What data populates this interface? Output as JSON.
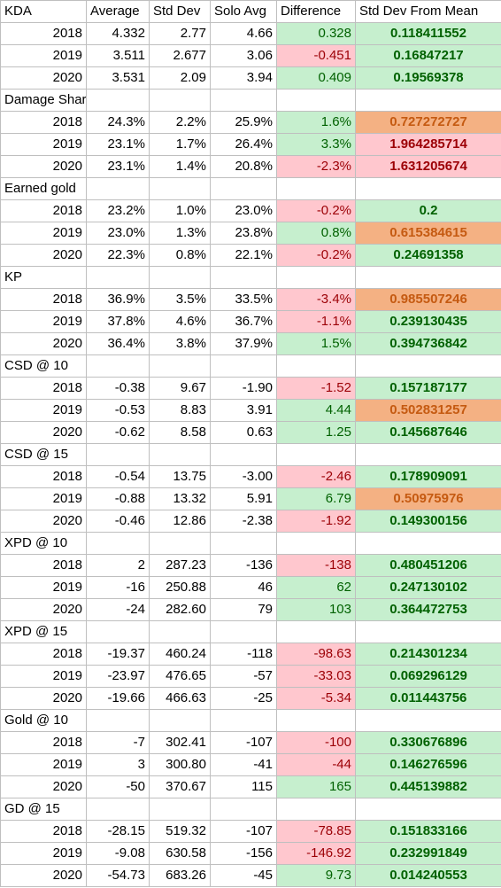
{
  "headers": [
    "Average",
    "Std Dev",
    "Solo Avg",
    "Difference",
    "Std Dev From Mean"
  ],
  "colors": {
    "positive_fill": "#c6efce",
    "positive_text": "#006100",
    "negative_fill": "#ffc7ce",
    "negative_text": "#9c0006",
    "warning_fill": "#f4b183",
    "warning_text": "#c55a11"
  },
  "sections": [
    {
      "name": "KDA",
      "rows": [
        {
          "year": "2018",
          "average": "4.332",
          "std_dev": "2.77",
          "solo_avg": "4.66",
          "difference": "0.328",
          "diff_sign": "pos",
          "sd_from_mean": "0.118411552",
          "sd_level": "good"
        },
        {
          "year": "2019",
          "average": "3.511",
          "std_dev": "2.677",
          "solo_avg": "3.06",
          "difference": "-0.451",
          "diff_sign": "neg",
          "sd_from_mean": "0.16847217",
          "sd_level": "good"
        },
        {
          "year": "2020",
          "average": "3.531",
          "std_dev": "2.09",
          "solo_avg": "3.94",
          "difference": "0.409",
          "diff_sign": "pos",
          "sd_from_mean": "0.19569378",
          "sd_level": "good"
        }
      ]
    },
    {
      "name": "Damage Share",
      "rows": [
        {
          "year": "2018",
          "average": "24.3%",
          "std_dev": "2.2%",
          "solo_avg": "25.9%",
          "difference": "1.6%",
          "diff_sign": "pos",
          "sd_from_mean": "0.727272727",
          "sd_level": "warn"
        },
        {
          "year": "2019",
          "average": "23.1%",
          "std_dev": "1.7%",
          "solo_avg": "26.4%",
          "difference": "3.3%",
          "diff_sign": "pos",
          "sd_from_mean": "1.964285714",
          "sd_level": "bad"
        },
        {
          "year": "2020",
          "average": "23.1%",
          "std_dev": "1.4%",
          "solo_avg": "20.8%",
          "difference": "-2.3%",
          "diff_sign": "neg",
          "sd_from_mean": "1.631205674",
          "sd_level": "bad"
        }
      ]
    },
    {
      "name": "Earned gold",
      "rows": [
        {
          "year": "2018",
          "average": "23.2%",
          "std_dev": "1.0%",
          "solo_avg": "23.0%",
          "difference": "-0.2%",
          "diff_sign": "neg",
          "sd_from_mean": "0.2",
          "sd_level": "good"
        },
        {
          "year": "2019",
          "average": "23.0%",
          "std_dev": "1.3%",
          "solo_avg": "23.8%",
          "difference": "0.8%",
          "diff_sign": "pos",
          "sd_from_mean": "0.615384615",
          "sd_level": "warn"
        },
        {
          "year": "2020",
          "average": "22.3%",
          "std_dev": "0.8%",
          "solo_avg": "22.1%",
          "difference": "-0.2%",
          "diff_sign": "neg",
          "sd_from_mean": "0.24691358",
          "sd_level": "good"
        }
      ]
    },
    {
      "name": "KP",
      "rows": [
        {
          "year": "2018",
          "average": "36.9%",
          "std_dev": "3.5%",
          "solo_avg": "33.5%",
          "difference": "-3.4%",
          "diff_sign": "neg",
          "sd_from_mean": "0.985507246",
          "sd_level": "warn"
        },
        {
          "year": "2019",
          "average": "37.8%",
          "std_dev": "4.6%",
          "solo_avg": "36.7%",
          "difference": "-1.1%",
          "diff_sign": "neg",
          "sd_from_mean": "0.239130435",
          "sd_level": "good"
        },
        {
          "year": "2020",
          "average": "36.4%",
          "std_dev": "3.8%",
          "solo_avg": "37.9%",
          "difference": "1.5%",
          "diff_sign": "pos",
          "sd_from_mean": "0.394736842",
          "sd_level": "good"
        }
      ]
    },
    {
      "name": "CSD @ 10",
      "rows": [
        {
          "year": "2018",
          "average": "-0.38",
          "std_dev": "9.67",
          "solo_avg": "-1.90",
          "difference": "-1.52",
          "diff_sign": "neg",
          "sd_from_mean": "0.157187177",
          "sd_level": "good"
        },
        {
          "year": "2019",
          "average": "-0.53",
          "std_dev": "8.83",
          "solo_avg": "3.91",
          "difference": "4.44",
          "diff_sign": "pos",
          "sd_from_mean": "0.502831257",
          "sd_level": "warn"
        },
        {
          "year": "2020",
          "average": "-0.62",
          "std_dev": "8.58",
          "solo_avg": "0.63",
          "difference": "1.25",
          "diff_sign": "pos",
          "sd_from_mean": "0.145687646",
          "sd_level": "good"
        }
      ]
    },
    {
      "name": "CSD @ 15",
      "rows": [
        {
          "year": "2018",
          "average": "-0.54",
          "std_dev": "13.75",
          "solo_avg": "-3.00",
          "difference": "-2.46",
          "diff_sign": "neg",
          "sd_from_mean": "0.178909091",
          "sd_level": "good"
        },
        {
          "year": "2019",
          "average": "-0.88",
          "std_dev": "13.32",
          "solo_avg": "5.91",
          "difference": "6.79",
          "diff_sign": "pos",
          "sd_from_mean": "0.50975976",
          "sd_level": "warn"
        },
        {
          "year": "2020",
          "average": "-0.46",
          "std_dev": "12.86",
          "solo_avg": "-2.38",
          "difference": "-1.92",
          "diff_sign": "neg",
          "sd_from_mean": "0.149300156",
          "sd_level": "good"
        }
      ]
    },
    {
      "name": "XPD @ 10",
      "rows": [
        {
          "year": "2018",
          "average": "2",
          "std_dev": "287.23",
          "solo_avg": "-136",
          "difference": "-138",
          "diff_sign": "neg",
          "sd_from_mean": "0.480451206",
          "sd_level": "good"
        },
        {
          "year": "2019",
          "average": "-16",
          "std_dev": "250.88",
          "solo_avg": "46",
          "difference": "62",
          "diff_sign": "pos",
          "sd_from_mean": "0.247130102",
          "sd_level": "good"
        },
        {
          "year": "2020",
          "average": "-24",
          "std_dev": "282.60",
          "solo_avg": "79",
          "difference": "103",
          "diff_sign": "pos",
          "sd_from_mean": "0.364472753",
          "sd_level": "good"
        }
      ]
    },
    {
      "name": "XPD @ 15",
      "rows": [
        {
          "year": "2018",
          "average": "-19.37",
          "std_dev": "460.24",
          "solo_avg": "-118",
          "difference": "-98.63",
          "diff_sign": "neg",
          "sd_from_mean": "0.214301234",
          "sd_level": "good"
        },
        {
          "year": "2019",
          "average": "-23.97",
          "std_dev": "476.65",
          "solo_avg": "-57",
          "difference": "-33.03",
          "diff_sign": "neg",
          "sd_from_mean": "0.069296129",
          "sd_level": "good"
        },
        {
          "year": "2020",
          "average": "-19.66",
          "std_dev": "466.63",
          "solo_avg": "-25",
          "difference": "-5.34",
          "diff_sign": "neg",
          "sd_from_mean": "0.011443756",
          "sd_level": "good"
        }
      ]
    },
    {
      "name": "Gold @ 10",
      "rows": [
        {
          "year": "2018",
          "average": "-7",
          "std_dev": "302.41",
          "solo_avg": "-107",
          "difference": "-100",
          "diff_sign": "neg",
          "sd_from_mean": "0.330676896",
          "sd_level": "good"
        },
        {
          "year": "2019",
          "average": "3",
          "std_dev": "300.80",
          "solo_avg": "-41",
          "difference": "-44",
          "diff_sign": "neg",
          "sd_from_mean": "0.146276596",
          "sd_level": "good"
        },
        {
          "year": "2020",
          "average": "-50",
          "std_dev": "370.67",
          "solo_avg": "115",
          "difference": "165",
          "diff_sign": "pos",
          "sd_from_mean": "0.445139882",
          "sd_level": "good"
        }
      ]
    },
    {
      "name": "GD @ 15",
      "rows": [
        {
          "year": "2018",
          "average": "-28.15",
          "std_dev": "519.32",
          "solo_avg": "-107",
          "difference": "-78.85",
          "diff_sign": "neg",
          "sd_from_mean": "0.151833166",
          "sd_level": "good"
        },
        {
          "year": "2019",
          "average": "-9.08",
          "std_dev": "630.58",
          "solo_avg": "-156",
          "difference": "-146.92",
          "diff_sign": "neg",
          "sd_from_mean": "0.232991849",
          "sd_level": "good"
        },
        {
          "year": "2020",
          "average": "-54.73",
          "std_dev": "683.26",
          "solo_avg": "-45",
          "difference": "9.73",
          "diff_sign": "pos",
          "sd_from_mean": "0.014240553",
          "sd_level": "good"
        }
      ]
    }
  ]
}
